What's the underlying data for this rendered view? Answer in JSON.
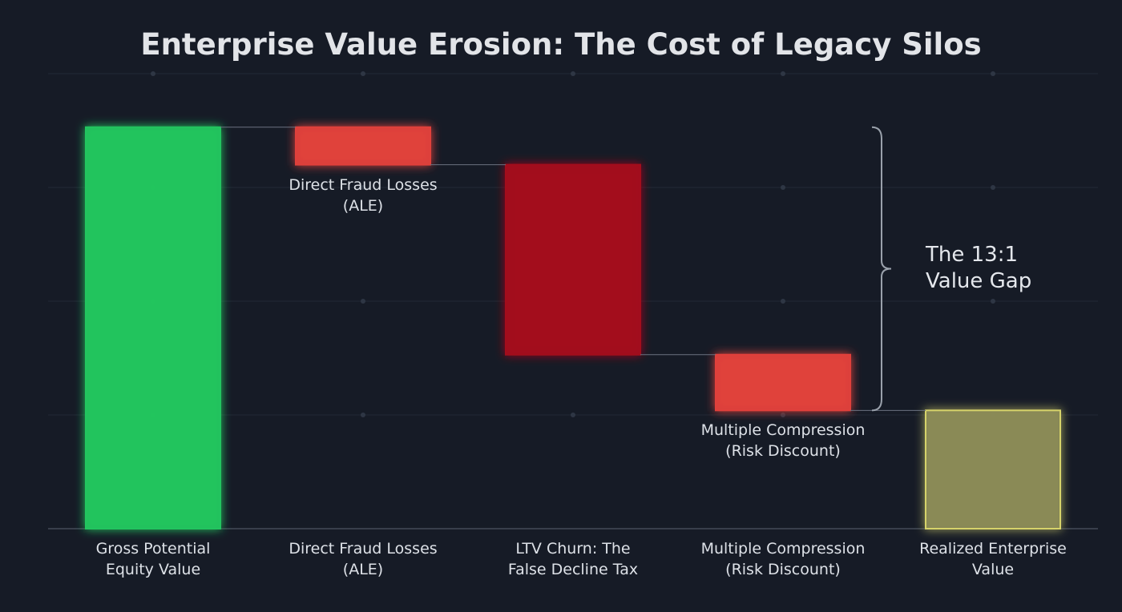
{
  "chart_data": {
    "type": "waterfall",
    "title": "Enterprise Value Erosion: The Cost of Legacy Silos",
    "categories": [
      "Gross Potential\nEquity Value",
      "Direct Fraud Losses\n(ALE)",
      "LTV Churn: The\nFalse Decline Tax",
      "Multiple Compression\n(Risk Discount)",
      "Realized Enterprise\nValue"
    ],
    "values": [
      3.53,
      -0.33,
      -1.67,
      -0.49,
      1.04
    ],
    "measures": [
      "total",
      "relative",
      "relative",
      "relative",
      "total"
    ],
    "colors": [
      "#22c55e",
      "#e0413b",
      "#a3111c",
      "#e0413b",
      "#8a8a56"
    ],
    "ylim": [
      0,
      4
    ],
    "grid": true,
    "annotations": [
      {
        "text": "Direct Fraud Losses\n(ALE)",
        "category": 1
      },
      {
        "text": "Multiple Compression\n(Risk Discount)",
        "category": 3
      }
    ],
    "bracket": {
      "text": "The 13:1\nValue Gap",
      "from": 1,
      "to": 3
    }
  }
}
